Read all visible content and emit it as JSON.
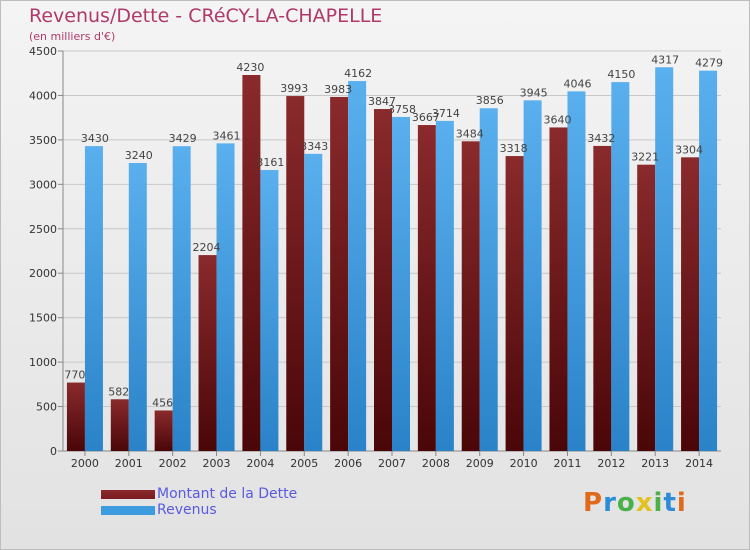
{
  "title": "Revenus/Dette - CRéCY-LA-CHAPELLE",
  "subtitle": "(en milliers d'€)",
  "brand": "Proxiti",
  "colors": {
    "dette": "#7a1c1f",
    "revenus": "#3d9be0"
  },
  "legend": [
    {
      "key": "dette",
      "label": "Montant de la Dette"
    },
    {
      "key": "revenus",
      "label": "Revenus"
    }
  ],
  "chart_data": {
    "type": "bar",
    "categories": [
      "2000",
      "2001",
      "2002",
      "2003",
      "2004",
      "2005",
      "2006",
      "2007",
      "2008",
      "2009",
      "2010",
      "2011",
      "2012",
      "2013",
      "2014"
    ],
    "series": [
      {
        "name": "Montant de la Dette",
        "values": [
          770,
          582,
          456,
          2204,
          4230,
          3993,
          3983,
          3847,
          3667,
          3484,
          3318,
          3640,
          3432,
          3221,
          3304
        ],
        "labels": [
          "770",
          "582",
          "456",
          "2204",
          "4230",
          "3993",
          "3983",
          "3847",
          "3667",
          "3484",
          "3318",
          "3640",
          "3432",
          "3221",
          "3304"
        ]
      },
      {
        "name": "Revenus",
        "values": [
          3430,
          3240,
          3429,
          3461,
          3161,
          3343,
          4162,
          3758,
          3714,
          3856,
          3945,
          4046,
          4150,
          4317,
          4279
        ],
        "labels": [
          "3430",
          "3240",
          "3429",
          "3461",
          "3161",
          "3343",
          "4162",
          "3758",
          "3714",
          "3856",
          "3945",
          "4046",
          "4150",
          "4317",
          "4279"
        ]
      }
    ],
    "yticks": [
      "0",
      "500",
      "1000",
      "1500",
      "2000",
      "2500",
      "3000",
      "3500",
      "4000",
      "4500"
    ],
    "ylim": [
      0,
      4500
    ],
    "grid": true,
    "legend_position": "bottom-left"
  }
}
